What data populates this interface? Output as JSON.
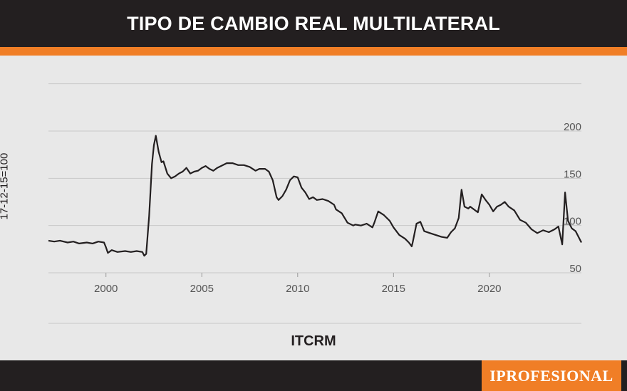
{
  "header": {
    "title": "TIPO DE CAMBIO REAL MULTILATERAL"
  },
  "brand": {
    "name": "IPROFESIONAL"
  },
  "colors": {
    "dark": "#231f20",
    "accent": "#f07e26",
    "background": "#e8e8e8",
    "line": "#231f20"
  },
  "chart_data": {
    "type": "line",
    "title": "TIPO DE CAMBIO REAL MULTILATERAL",
    "xlabel": "ITCRM",
    "ylabel": "17-12-15=100",
    "xlim": [
      1997,
      2024.8
    ],
    "ylim": [
      50,
      200
    ],
    "x_ticks": [
      2000,
      2005,
      2010,
      2015,
      2020
    ],
    "y_ticks": [
      50,
      100,
      150,
      200
    ],
    "grid": true,
    "series": [
      {
        "name": "ITCRM",
        "points": [
          [
            1997.0,
            84
          ],
          [
            1997.3,
            83
          ],
          [
            1997.6,
            84
          ],
          [
            1998.0,
            82
          ],
          [
            1998.3,
            83
          ],
          [
            1998.6,
            81
          ],
          [
            1999.0,
            82
          ],
          [
            1999.3,
            81
          ],
          [
            1999.6,
            83
          ],
          [
            1999.9,
            82
          ],
          [
            2000.0,
            77
          ],
          [
            2000.1,
            71
          ],
          [
            2000.3,
            74
          ],
          [
            2000.6,
            72
          ],
          [
            2001.0,
            73
          ],
          [
            2001.3,
            72
          ],
          [
            2001.6,
            73
          ],
          [
            2001.9,
            72
          ],
          [
            2002.0,
            68
          ],
          [
            2002.1,
            70
          ],
          [
            2002.25,
            110
          ],
          [
            2002.4,
            165
          ],
          [
            2002.5,
            185
          ],
          [
            2002.6,
            195
          ],
          [
            2002.75,
            178
          ],
          [
            2002.9,
            167
          ],
          [
            2003.0,
            168
          ],
          [
            2003.2,
            155
          ],
          [
            2003.4,
            150
          ],
          [
            2003.6,
            152
          ],
          [
            2003.8,
            155
          ],
          [
            2004.0,
            157
          ],
          [
            2004.2,
            161
          ],
          [
            2004.4,
            155
          ],
          [
            2004.6,
            157
          ],
          [
            2004.8,
            158
          ],
          [
            2005.0,
            161
          ],
          [
            2005.2,
            163
          ],
          [
            2005.4,
            160
          ],
          [
            2005.6,
            158
          ],
          [
            2005.8,
            161
          ],
          [
            2006.0,
            163
          ],
          [
            2006.3,
            166
          ],
          [
            2006.6,
            166
          ],
          [
            2006.9,
            164
          ],
          [
            2007.2,
            164
          ],
          [
            2007.5,
            162
          ],
          [
            2007.8,
            158
          ],
          [
            2008.0,
            160
          ],
          [
            2008.3,
            160
          ],
          [
            2008.5,
            157
          ],
          [
            2008.7,
            148
          ],
          [
            2008.9,
            130
          ],
          [
            2009.0,
            127
          ],
          [
            2009.2,
            131
          ],
          [
            2009.4,
            138
          ],
          [
            2009.6,
            148
          ],
          [
            2009.8,
            152
          ],
          [
            2010.0,
            151
          ],
          [
            2010.2,
            140
          ],
          [
            2010.4,
            135
          ],
          [
            2010.6,
            128
          ],
          [
            2010.8,
            130
          ],
          [
            2011.0,
            127
          ],
          [
            2011.3,
            128
          ],
          [
            2011.6,
            126
          ],
          [
            2011.9,
            122
          ],
          [
            2012.0,
            117
          ],
          [
            2012.3,
            113
          ],
          [
            2012.6,
            103
          ],
          [
            2012.9,
            100
          ],
          [
            2013.0,
            101
          ],
          [
            2013.3,
            100
          ],
          [
            2013.6,
            102
          ],
          [
            2013.9,
            98
          ],
          [
            2014.0,
            103
          ],
          [
            2014.2,
            115
          ],
          [
            2014.5,
            111
          ],
          [
            2014.8,
            105
          ],
          [
            2015.0,
            98
          ],
          [
            2015.3,
            90
          ],
          [
            2015.6,
            86
          ],
          [
            2015.8,
            82
          ],
          [
            2015.95,
            78
          ],
          [
            2016.0,
            82
          ],
          [
            2016.2,
            102
          ],
          [
            2016.4,
            104
          ],
          [
            2016.6,
            94
          ],
          [
            2016.9,
            92
          ],
          [
            2017.2,
            90
          ],
          [
            2017.5,
            88
          ],
          [
            2017.8,
            87
          ],
          [
            2018.0,
            93
          ],
          [
            2018.2,
            97
          ],
          [
            2018.4,
            108
          ],
          [
            2018.55,
            138
          ],
          [
            2018.7,
            120
          ],
          [
            2018.9,
            118
          ],
          [
            2019.0,
            120
          ],
          [
            2019.2,
            117
          ],
          [
            2019.4,
            114
          ],
          [
            2019.6,
            133
          ],
          [
            2019.8,
            127
          ],
          [
            2020.0,
            122
          ],
          [
            2020.2,
            115
          ],
          [
            2020.4,
            120
          ],
          [
            2020.6,
            122
          ],
          [
            2020.8,
            125
          ],
          [
            2021.0,
            120
          ],
          [
            2021.3,
            116
          ],
          [
            2021.6,
            106
          ],
          [
            2021.9,
            103
          ],
          [
            2022.2,
            96
          ],
          [
            2022.5,
            92
          ],
          [
            2022.8,
            95
          ],
          [
            2023.1,
            93
          ],
          [
            2023.4,
            96
          ],
          [
            2023.6,
            99
          ],
          [
            2023.8,
            80
          ],
          [
            2023.95,
            135
          ],
          [
            2024.1,
            105
          ],
          [
            2024.3,
            97
          ],
          [
            2024.5,
            94
          ],
          [
            2024.8,
            82
          ]
        ]
      }
    ]
  }
}
